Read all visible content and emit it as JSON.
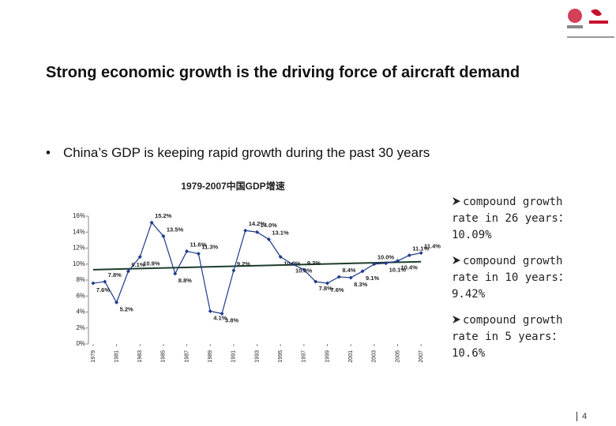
{
  "title": "Strong economic growth is the driving force of aircraft demand",
  "bullet": "China’s GDP is keeping rapid growth during the past 30 years",
  "notes": [
    "compound growth rate in 26 years：10.09%",
    "compound growth rate in 10 years：9.42%",
    "compound growth rate in 5 years：10.6%"
  ],
  "page_number": "4",
  "chart_data": {
    "type": "line",
    "title": "1979-2007中国GDP增速",
    "x": [
      1979,
      1980,
      1981,
      1982,
      1983,
      1984,
      1985,
      1986,
      1987,
      1988,
      1989,
      1990,
      1991,
      1992,
      1993,
      1994,
      1995,
      1996,
      1997,
      1998,
      1999,
      2000,
      2001,
      2002,
      2003,
      2004,
      2005,
      2006,
      2007
    ],
    "series": [
      {
        "name": "GDP",
        "color": "#1f3a8a",
        "values": [
          7.6,
          7.8,
          5.2,
          9.1,
          10.9,
          15.2,
          13.5,
          8.8,
          11.6,
          11.3,
          4.1,
          3.8,
          9.2,
          14.2,
          14.0,
          13.1,
          10.9,
          10.0,
          9.3,
          7.8,
          7.6,
          8.4,
          8.3,
          9.1,
          10.0,
          10.1,
          10.4,
          11.1,
          11.4
        ],
        "value_labels": [
          "7.6%",
          "7.8%",
          "5.2%",
          "9.1%",
          "10.9%",
          "15.2%",
          "13.5%",
          "8.8%",
          "11.6%",
          "11.3%",
          "4.1%",
          "3.8%",
          "9.2%",
          "14.2%",
          "14.0%",
          "13.1%",
          "10.9%",
          "10.0%",
          "9.3%",
          "7.8%",
          "7.6%",
          "8.4%",
          "8.3%",
          "9.1%",
          "10.0%",
          "10.1%",
          "10.4%",
          "11.1%",
          "11.4%"
        ]
      }
    ],
    "trend": {
      "color": "#1d3d2a",
      "x": [
        1979,
        2007
      ],
      "values": [
        9.3,
        10.3
      ]
    },
    "xlim": [
      1978.6,
      2007.8
    ],
    "xticks": [
      1979,
      1981,
      1983,
      1985,
      1987,
      1989,
      1991,
      1993,
      1995,
      1997,
      1999,
      2001,
      2003,
      2005,
      2007
    ],
    "ylim": [
      0,
      16
    ],
    "yticks": [
      {
        "value": 0,
        "label": "0%"
      },
      {
        "value": 2,
        "label": "2%"
      },
      {
        "value": 4,
        "label": "4%"
      },
      {
        "value": 6,
        "label": "6%"
      },
      {
        "value": 8,
        "label": "8%"
      },
      {
        "value": 10,
        "label": "10%"
      },
      {
        "value": 12,
        "label": "12%"
      },
      {
        "value": 14,
        "label": "14%"
      },
      {
        "value": 16,
        "label": "16%"
      }
    ],
    "grid": false
  }
}
